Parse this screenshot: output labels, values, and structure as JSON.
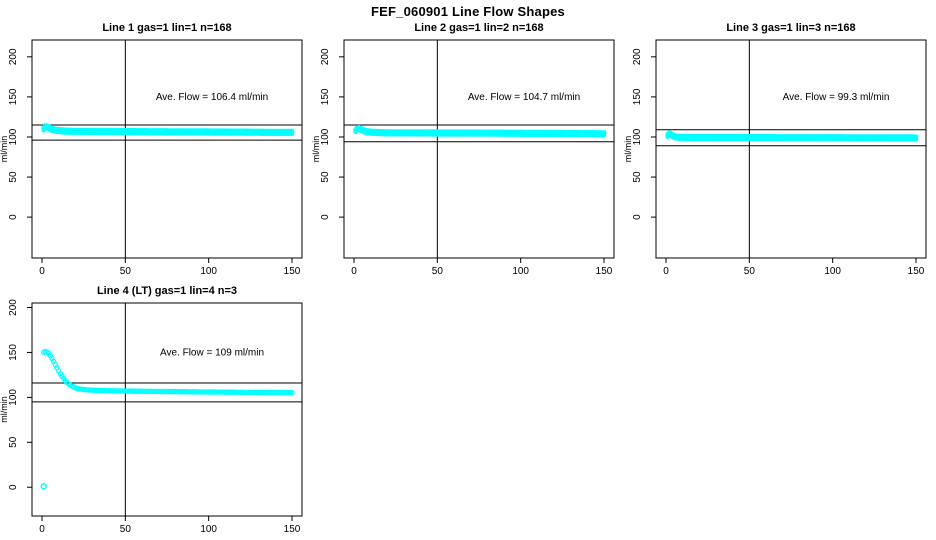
{
  "page_title": "FEF_060901  Line Flow Shapes",
  "colors": {
    "background": "#ffffff",
    "axis": "#000000",
    "text": "#000000",
    "data_points": "#00ffff"
  },
  "chart_data": [
    {
      "type": "scatter",
      "title": "Line 1 gas=1 lin=1 n=168",
      "annotation": "Ave. Flow =  106.4  ml/min",
      "avg_flow_ml_min": 106.4,
      "n": 168,
      "ylabel": "ml/min",
      "xticks": [
        0,
        50,
        100,
        150
      ],
      "yticks": [
        0,
        50,
        100,
        150,
        200
      ],
      "xlim": [
        -6,
        156
      ],
      "ylim": [
        -51,
        221
      ],
      "vline_x": 50,
      "hlines_y": [
        115,
        96
      ],
      "band_halfwidth": 1.7,
      "point_radius": 1.7,
      "profile": [
        [
          1,
          110
        ],
        [
          2,
          112.5
        ],
        [
          3,
          112.5
        ],
        [
          4,
          111.5
        ],
        [
          5,
          110.5
        ],
        [
          6,
          109.5
        ],
        [
          8,
          108.5
        ],
        [
          10,
          108
        ],
        [
          14,
          107.3
        ],
        [
          20,
          107
        ],
        [
          40,
          106.8
        ],
        [
          60,
          106.6
        ],
        [
          80,
          106.4
        ],
        [
          100,
          106.2
        ],
        [
          120,
          106
        ],
        [
          150,
          105.6
        ]
      ],
      "outliers": []
    },
    {
      "type": "scatter",
      "title": "Line 2 gas=1 lin=2 n=168",
      "annotation": "Ave. Flow =  104.7  ml/min",
      "avg_flow_ml_min": 104.7,
      "n": 168,
      "ylabel": "ml/min",
      "xticks": [
        0,
        50,
        100,
        150
      ],
      "yticks": [
        0,
        50,
        100,
        150,
        200
      ],
      "xlim": [
        -6,
        156
      ],
      "ylim": [
        -51,
        221
      ],
      "vline_x": 50,
      "hlines_y": [
        115,
        94
      ],
      "band_halfwidth": 1.7,
      "point_radius": 1.7,
      "profile": [
        [
          1,
          108
        ],
        [
          2,
          110
        ],
        [
          3,
          110.5
        ],
        [
          4,
          109.5
        ],
        [
          5,
          108.5
        ],
        [
          6,
          107.5
        ],
        [
          8,
          106.5
        ],
        [
          10,
          106
        ],
        [
          14,
          105.5
        ],
        [
          20,
          105.2
        ],
        [
          40,
          105
        ],
        [
          60,
          104.9
        ],
        [
          80,
          104.8
        ],
        [
          100,
          104.6
        ],
        [
          120,
          104.4
        ],
        [
          150,
          104
        ]
      ],
      "outliers": []
    },
    {
      "type": "scatter",
      "title": "Line 3 gas=1 lin=3 n=168",
      "annotation": "Ave. Flow =  99.3  ml/min",
      "avg_flow_ml_min": 99.3,
      "n": 168,
      "ylabel": "ml/min",
      "xticks": [
        0,
        50,
        100,
        150
      ],
      "yticks": [
        0,
        50,
        100,
        150,
        200
      ],
      "xlim": [
        -6,
        156
      ],
      "ylim": [
        -51,
        221
      ],
      "vline_x": 50,
      "hlines_y": [
        109,
        89
      ],
      "band_halfwidth": 1.6,
      "point_radius": 1.7,
      "profile": [
        [
          1,
          102
        ],
        [
          2,
          104
        ],
        [
          3,
          103
        ],
        [
          4,
          101.5
        ],
        [
          5,
          100.5
        ],
        [
          6,
          100
        ],
        [
          8,
          99.6
        ],
        [
          12,
          99.3
        ],
        [
          20,
          99.2
        ],
        [
          60,
          99.2
        ],
        [
          100,
          99.1
        ],
        [
          150,
          98.8
        ]
      ],
      "outliers": []
    },
    {
      "type": "scatter",
      "title": "Line 4 (LT) gas=1 lin=4 n=3",
      "annotation": "Ave. Flow =  109  ml/min",
      "avg_flow_ml_min": 109,
      "n": 3,
      "ylabel": "ml/min",
      "xticks": [
        0,
        50,
        100,
        150
      ],
      "yticks": [
        0,
        50,
        100,
        150,
        200
      ],
      "xlim": [
        -6,
        156
      ],
      "ylim": [
        -32,
        205
      ],
      "vline_x": 50,
      "hlines_y": [
        116,
        95
      ],
      "band_halfwidth": 0.8,
      "point_radius": 2.1,
      "profile": [
        [
          1,
          150
        ],
        [
          2,
          151
        ],
        [
          3,
          150.5
        ],
        [
          4,
          149
        ],
        [
          5,
          146.5
        ],
        [
          6,
          143.5
        ],
        [
          7,
          140
        ],
        [
          8,
          136.5
        ],
        [
          9,
          133
        ],
        [
          10,
          129.5
        ],
        [
          11,
          126.5
        ],
        [
          12,
          123.5
        ],
        [
          13,
          121
        ],
        [
          14,
          118.5
        ],
        [
          15,
          116.5
        ],
        [
          16,
          115
        ],
        [
          17,
          113.5
        ],
        [
          18,
          112.5
        ],
        [
          19,
          111.5
        ],
        [
          20,
          110.5
        ],
        [
          22,
          109.5
        ],
        [
          25,
          108.7
        ],
        [
          30,
          108
        ],
        [
          35,
          107.7
        ],
        [
          40,
          107.4
        ],
        [
          50,
          107
        ],
        [
          60,
          106.8
        ],
        [
          80,
          106.4
        ],
        [
          100,
          106
        ],
        [
          120,
          105.6
        ],
        [
          150,
          105.2
        ]
      ],
      "outliers": [
        [
          1,
          1
        ]
      ]
    }
  ]
}
